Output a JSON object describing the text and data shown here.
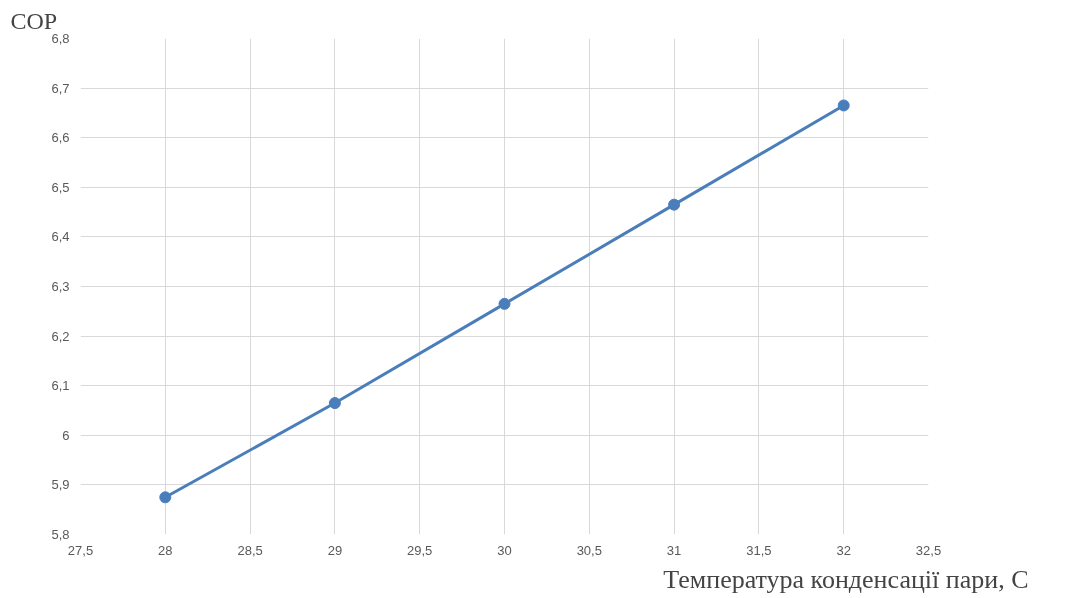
{
  "chart_data": {
    "type": "line",
    "ylabel": "COP",
    "xlabel": "Температура конденсації пари, С",
    "x": [
      28,
      29,
      30,
      31,
      32
    ],
    "series": [
      {
        "color": "#4a7ebb",
        "values": [
          5.875,
          6.065,
          6.265,
          6.465,
          6.665
        ]
      }
    ],
    "xlim": [
      27.5,
      32.5
    ],
    "xticks": [
      {
        "value": 27.5,
        "label": "27,5"
      },
      28,
      {
        "value": 28.5,
        "label": "28,5"
      },
      29,
      {
        "value": 29.5,
        "label": "29,5"
      },
      30,
      {
        "value": 30.5,
        "label": "30,5"
      },
      31,
      {
        "value": 31.5,
        "label": "31,5"
      },
      32,
      {
        "value": 32.5,
        "label": "32,5"
      }
    ],
    "ylim": [
      5.8,
      6.8
    ],
    "yticks": [
      {
        "value": 5.8,
        "label": "5,8"
      },
      {
        "value": 5.9,
        "label": "5,9"
      },
      6,
      {
        "value": 6.1,
        "label": "6,1"
      },
      {
        "value": 6.2,
        "label": "6,2"
      },
      {
        "value": 6.3,
        "label": "6,3"
      },
      {
        "value": 6.4,
        "label": "6,4"
      },
      {
        "value": 6.5,
        "label": "6,5"
      },
      {
        "value": 6.6,
        "label": "6,6"
      },
      {
        "value": 6.7,
        "label": "6,7"
      },
      {
        "value": 6.8,
        "label": "6,8"
      }
    ],
    "grid": true,
    "marker": "circle",
    "line_style": "solid"
  }
}
